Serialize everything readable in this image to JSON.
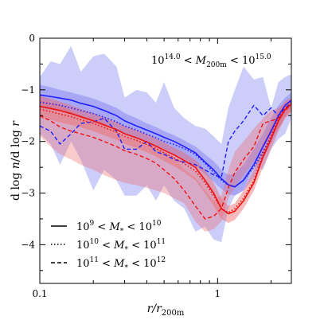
{
  "chart_data": {
    "type": "line",
    "title": "",
    "annotation": "10^{14.0} < M_{200m} < 10^{15.0}",
    "xlabel": "r/r_{200m}",
    "ylabel": "d log n/d log r",
    "xscale": "log",
    "xlim": [
      0.1,
      2.6
    ],
    "ylim": [
      -4.75,
      0
    ],
    "xticks": [
      {
        "value": 0.1,
        "label": "0.1"
      },
      {
        "value": 1.0,
        "label": "1"
      }
    ],
    "yticks": [
      {
        "value": 0,
        "label": "0"
      },
      {
        "value": -1,
        "label": "−1"
      },
      {
        "value": -2,
        "label": "−2"
      },
      {
        "value": -3,
        "label": "−3"
      },
      {
        "value": -4,
        "label": "−4"
      }
    ],
    "legend_position": "lower-left",
    "legend": [
      {
        "label": "10^9 < M_* < 10^{10}",
        "linestyle": "solid"
      },
      {
        "label": "10^{10} < M_* < 10^{11}",
        "linestyle": "dotted"
      },
      {
        "label": "10^{11} < M_* < 10^{12}",
        "linestyle": "dashed"
      }
    ],
    "colors": {
      "blue": "#1f1fff",
      "red": "#ee1111",
      "blue_band": "#7b7bf2",
      "red_band": "#ee6666"
    },
    "x": [
      0.1,
      0.115,
      0.13,
      0.15,
      0.17,
      0.2,
      0.23,
      0.27,
      0.3,
      0.35,
      0.4,
      0.45,
      0.5,
      0.57,
      0.65,
      0.75,
      0.85,
      0.95,
      1.05,
      1.15,
      1.25,
      1.4,
      1.6,
      1.8,
      2.0,
      2.2,
      2.4,
      2.6
    ],
    "series": [
      {
        "color": "blue",
        "linestyle": "solid",
        "width": 1.6,
        "y": [
          -1.1,
          -1.13,
          -1.16,
          -1.2,
          -1.26,
          -1.32,
          -1.4,
          -1.5,
          -1.6,
          -1.7,
          -1.78,
          -1.85,
          -1.92,
          -2.0,
          -2.1,
          -2.22,
          -2.4,
          -2.55,
          -2.72,
          -2.84,
          -2.88,
          -2.75,
          -2.45,
          -2.1,
          -1.8,
          -1.5,
          -1.3,
          -1.2
        ]
      },
      {
        "color": "blue",
        "linestyle": "dotted",
        "width": 1.6,
        "y": [
          -1.24,
          -1.27,
          -1.3,
          -1.35,
          -1.4,
          -1.46,
          -1.53,
          -1.62,
          -1.7,
          -1.78,
          -1.86,
          -1.93,
          -2.0,
          -2.06,
          -2.14,
          -2.25,
          -2.42,
          -2.6,
          -2.75,
          -2.85,
          -2.88,
          -2.75,
          -2.5,
          -2.2,
          -1.9,
          -1.6,
          -1.38,
          -1.24
        ]
      },
      {
        "color": "blue",
        "linestyle": "dashed",
        "width": 1.4,
        "y": [
          -1.7,
          -1.8,
          -2.05,
          -1.85,
          -1.65,
          -1.62,
          -1.55,
          -1.8,
          -2.15,
          -2.15,
          -2.0,
          -2.2,
          -2.25,
          -2.35,
          -2.4,
          -2.45,
          -2.55,
          -2.65,
          -2.7,
          -2.0,
          -1.8,
          -1.6,
          -1.3,
          -1.5,
          -1.35,
          -1.5,
          -1.35,
          -1.25
        ]
      },
      {
        "color": "red",
        "linestyle": "solid",
        "width": 1.6,
        "y": [
          -1.32,
          -1.36,
          -1.4,
          -1.46,
          -1.52,
          -1.6,
          -1.68,
          -1.77,
          -1.85,
          -1.93,
          -2.01,
          -2.09,
          -2.17,
          -2.26,
          -2.37,
          -2.5,
          -2.75,
          -3.0,
          -3.3,
          -3.4,
          -3.35,
          -3.15,
          -2.8,
          -2.3,
          -1.95,
          -1.6,
          -1.38,
          -1.28
        ]
      },
      {
        "color": "red",
        "linestyle": "dotted",
        "width": 1.6,
        "y": [
          -1.38,
          -1.42,
          -1.47,
          -1.52,
          -1.58,
          -1.65,
          -1.73,
          -1.82,
          -1.9,
          -1.98,
          -2.06,
          -2.14,
          -2.22,
          -2.32,
          -2.43,
          -2.57,
          -2.8,
          -3.05,
          -3.3,
          -3.38,
          -3.3,
          -3.1,
          -2.75,
          -2.25,
          -1.9,
          -1.55,
          -1.35,
          -1.26
        ]
      },
      {
        "color": "red",
        "linestyle": "dashed",
        "width": 1.4,
        "y": [
          -1.5,
          -1.6,
          -1.72,
          -1.8,
          -1.85,
          -1.92,
          -2.0,
          -2.1,
          -2.18,
          -2.25,
          -2.33,
          -2.42,
          -2.55,
          -2.72,
          -2.95,
          -3.25,
          -3.5,
          -3.45,
          -3.3,
          -2.9,
          -2.6,
          -2.35,
          -2.1,
          -1.65,
          -1.6,
          -1.55,
          -1.4,
          -1.28
        ]
      }
    ],
    "bands": [
      {
        "color": "blue_band",
        "opacity": 0.38,
        "upper": [
          -0.75,
          -0.45,
          -0.5,
          -0.15,
          -0.65,
          -0.35,
          -0.3,
          -0.55,
          -1.15,
          -1.0,
          -1.05,
          -1.25,
          -0.85,
          -1.35,
          -1.55,
          -1.7,
          -1.75,
          -1.9,
          -2.05,
          -1.35,
          -1.0,
          -0.55,
          -0.8,
          -0.75,
          -1.35,
          -0.85,
          -0.75,
          -0.7
        ],
        "lower": [
          -1.85,
          -2.05,
          -2.45,
          -2.0,
          -2.35,
          -2.95,
          -2.55,
          -2.75,
          -3.05,
          -3.05,
          -2.85,
          -3.15,
          -2.85,
          -3.15,
          -3.3,
          -3.75,
          -3.65,
          -3.9,
          -3.95,
          -3.3,
          -3.05,
          -2.95,
          -2.45,
          -2.55,
          -2.15,
          -1.95,
          -1.85,
          -1.55
        ]
      },
      {
        "color": "blue_band",
        "opacity": 0.45,
        "upper": [
          -0.9,
          -0.95,
          -1.0,
          -1.05,
          -1.1,
          -1.17,
          -1.25,
          -1.35,
          -1.45,
          -1.55,
          -1.65,
          -1.72,
          -1.8,
          -1.88,
          -1.98,
          -2.1,
          -2.25,
          -2.38,
          -2.55,
          -2.65,
          -2.62,
          -2.45,
          -2.15,
          -1.85,
          -1.55,
          -1.3,
          -1.15,
          -1.05
        ],
        "lower": [
          -1.35,
          -1.38,
          -1.42,
          -1.47,
          -1.53,
          -1.6,
          -1.68,
          -1.77,
          -1.85,
          -1.93,
          -2.0,
          -2.08,
          -2.15,
          -2.25,
          -2.35,
          -2.48,
          -2.63,
          -2.78,
          -2.92,
          -3.02,
          -3.05,
          -2.95,
          -2.7,
          -2.35,
          -2.05,
          -1.75,
          -1.5,
          -1.35
        ]
      },
      {
        "color": "red_band",
        "opacity": 0.45,
        "upper": [
          -1.12,
          -1.17,
          -1.23,
          -1.3,
          -1.37,
          -1.45,
          -1.53,
          -1.62,
          -1.7,
          -1.78,
          -1.86,
          -1.94,
          -2.02,
          -2.12,
          -2.22,
          -2.36,
          -2.55,
          -2.8,
          -3.1,
          -3.25,
          -3.2,
          -2.95,
          -2.55,
          -2.05,
          -1.7,
          -1.4,
          -1.22,
          -1.15
        ],
        "lower": [
          -1.55,
          -1.58,
          -1.63,
          -1.68,
          -1.73,
          -1.8,
          -1.88,
          -1.97,
          -2.05,
          -2.13,
          -2.21,
          -2.29,
          -2.38,
          -2.48,
          -2.6,
          -2.75,
          -3.0,
          -3.25,
          -3.5,
          -3.58,
          -3.52,
          -3.3,
          -2.95,
          -2.5,
          -2.15,
          -1.8,
          -1.55,
          -1.42
        ]
      },
      {
        "color": "red_band",
        "opacity": 0.35,
        "upper": [
          -1.2,
          -1.25,
          -1.3,
          -1.4,
          -1.5,
          -1.55,
          -1.65,
          -1.8,
          -1.9,
          -1.95,
          -2.05,
          -2.1,
          -2.2,
          -2.3,
          -2.55,
          -2.7,
          -2.95,
          -3.15,
          -3.05,
          -2.55,
          -2.2,
          -2.0,
          -1.75,
          -1.55,
          -1.4,
          -1.35,
          -1.25,
          -1.2
        ],
        "lower": [
          -1.9,
          -2.1,
          -2.25,
          -2.35,
          -2.45,
          -2.55,
          -2.65,
          -2.75,
          -2.8,
          -2.85,
          -2.9,
          -2.95,
          -3.0,
          -3.1,
          -3.2,
          -3.55,
          -3.75,
          -3.7,
          -3.55,
          -3.1,
          -2.9,
          -2.65,
          -2.4,
          -2.1,
          -1.9,
          -1.75,
          -1.55,
          -1.4
        ]
      }
    ]
  }
}
